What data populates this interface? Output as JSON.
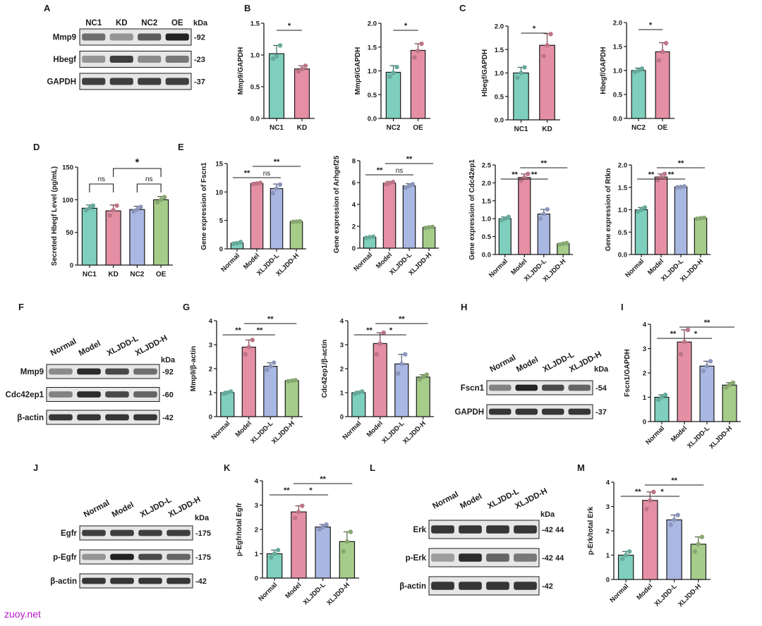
{
  "watermark": "zuoy.net",
  "colors": {
    "NC1": "#7ecfbd",
    "KD": "#e58fa4",
    "NC2": "#7ecfbd",
    "OE": "#e58fa4",
    "Normal": "#7ecfbd",
    "Model": "#e58fa4",
    "XLJDD-L": "#a9b7e3",
    "XLJDD-H": "#a6cc8a",
    "NC2_D": "#a9b7e3",
    "OE_D": "#a6cc8a"
  },
  "blots": [
    {
      "letter": "A",
      "lanes": [
        "NC1",
        "KD",
        "NC2",
        "OE"
      ],
      "unit": "kDa",
      "rows": [
        {
          "name": "Mmp9",
          "mw": "-92",
          "intensity": [
            0.55,
            0.35,
            0.65,
            0.95
          ]
        },
        {
          "name": "Hbegf",
          "mw": "-23",
          "intensity": [
            0.35,
            0.8,
            0.4,
            0.5
          ]
        },
        {
          "name": "GAPDH",
          "mw": "-37",
          "intensity": [
            0.8,
            0.8,
            0.8,
            0.8
          ]
        }
      ]
    },
    {
      "letter": "F",
      "lanes": [
        "Normal",
        "Model",
        "XLJDD-L",
        "XLJDD-H"
      ],
      "unit": "kDa",
      "rows": [
        {
          "name": "Mmp9",
          "mw": "-92",
          "intensity": [
            0.4,
            0.9,
            0.75,
            0.55
          ]
        },
        {
          "name": "Cdc42ep1",
          "mw": "-60",
          "intensity": [
            0.45,
            0.9,
            0.75,
            0.6
          ]
        },
        {
          "name": "β-actin",
          "mw": "-42",
          "intensity": [
            0.85,
            0.85,
            0.85,
            0.85
          ]
        }
      ]
    },
    {
      "letter": "H",
      "lanes": [
        "Normal",
        "Model",
        "XLJDD-L",
        "XLJDD-H"
      ],
      "unit": "kDa",
      "rows": [
        {
          "name": "Fscn1",
          "mw": "-54",
          "intensity": [
            0.45,
            0.95,
            0.75,
            0.6
          ]
        },
        {
          "name": "GAPDH",
          "mw": "-37",
          "intensity": [
            0.85,
            0.85,
            0.85,
            0.85
          ]
        }
      ]
    },
    {
      "letter": "J",
      "lanes": [
        "Normal",
        "Model",
        "XLJDD-L",
        "XLJDD-H"
      ],
      "unit": "kDa",
      "rows": [
        {
          "name": "Egfr",
          "mw": "-175",
          "intensity": [
            0.8,
            0.8,
            0.8,
            0.8
          ]
        },
        {
          "name": "p-Egfr",
          "mw": "-175",
          "intensity": [
            0.35,
            0.95,
            0.75,
            0.6
          ]
        },
        {
          "name": "β-actin",
          "mw": "-42",
          "intensity": [
            0.85,
            0.85,
            0.85,
            0.85
          ]
        }
      ]
    },
    {
      "letter": "L",
      "lanes": [
        "Normal",
        "Model",
        "XLJDD-L",
        "XLJDD-H"
      ],
      "unit": "kDa",
      "rows": [
        {
          "name": "Erk",
          "mw": "-42 44",
          "intensity": [
            0.85,
            0.85,
            0.85,
            0.85
          ]
        },
        {
          "name": "p-Erk",
          "mw": "-42 44",
          "intensity": [
            0.3,
            0.9,
            0.6,
            0.5
          ]
        },
        {
          "name": "β-actin",
          "mw": "-42",
          "intensity": [
            0.85,
            0.85,
            0.85,
            0.85
          ]
        }
      ]
    }
  ],
  "chart_data": [
    {
      "panel": "B",
      "type": "bar",
      "categories": [
        "NC1",
        "KD"
      ],
      "values": [
        1.02,
        0.78
      ],
      "errors": [
        0.13,
        0.05
      ],
      "points": [
        [
          0.94,
          0.98,
          1.15
        ],
        [
          0.74,
          0.78,
          0.83
        ]
      ],
      "ylabel": "Mmp9/GAPDH",
      "ylim": [
        0,
        1.5
      ],
      "yticks": [
        "0.0",
        "0.5",
        "1.0",
        "1.5"
      ],
      "sig": [
        {
          "a": 0,
          "b": 1,
          "label": "*"
        }
      ]
    },
    {
      "panel": "B2",
      "type": "bar",
      "categories": [
        "NC2",
        "OE"
      ],
      "values": [
        0.97,
        1.43
      ],
      "errors": [
        0.14,
        0.14
      ],
      "points": [
        [
          0.88,
          0.96,
          1.08
        ],
        [
          1.28,
          1.42,
          1.57
        ]
      ],
      "ylabel": "Mmp9/GAPDH",
      "ylim": [
        0,
        2.0
      ],
      "yticks": [
        "0.0",
        "0.5",
        "1.0",
        "1.5",
        "2.0"
      ],
      "sig": [
        {
          "a": 0,
          "b": 1,
          "label": "*"
        }
      ]
    },
    {
      "panel": "C",
      "type": "bar",
      "categories": [
        "NC1",
        "KD"
      ],
      "values": [
        1.0,
        1.59
      ],
      "errors": [
        0.12,
        0.25
      ],
      "points": [
        [
          0.9,
          1.0,
          1.12
        ],
        [
          1.36,
          1.59,
          1.83
        ]
      ],
      "ylabel": "Hbegf/GAPDH",
      "ylim": [
        0,
        2.0
      ],
      "yticks": [
        "0.0",
        "0.5",
        "1.0",
        "1.5",
        "2.0"
      ],
      "sig": [
        {
          "a": 0,
          "b": 1,
          "label": "*"
        }
      ]
    },
    {
      "panel": "C2",
      "type": "bar",
      "categories": [
        "NC2",
        "OE"
      ],
      "values": [
        1.0,
        1.39
      ],
      "errors": [
        0.05,
        0.19
      ],
      "points": [
        [
          0.97,
          1.0,
          1.04
        ],
        [
          1.21,
          1.39,
          1.57
        ]
      ],
      "ylabel": "Hbegf/GAPDH",
      "ylim": [
        0,
        2.0
      ],
      "yticks": [
        "0.0",
        "0.5",
        "1.0",
        "1.5",
        "2.0"
      ],
      "sig": [
        {
          "a": 0,
          "b": 1,
          "label": "*"
        }
      ]
    },
    {
      "panel": "D",
      "type": "bar",
      "categories": [
        "NC1",
        "KD",
        "NC2",
        "OE"
      ],
      "values": [
        87,
        83,
        85,
        100
      ],
      "errors": [
        5,
        9,
        5,
        5
      ],
      "points": [
        [
          84,
          87,
          91
        ],
        [
          76,
          84,
          91
        ],
        [
          82,
          85,
          89
        ],
        [
          96,
          100,
          104
        ]
      ],
      "ylabel": "Secreted Hbegf Level (pg/mL)",
      "ylim": [
        0,
        150
      ],
      "yticks": [
        "0",
        "50",
        "100",
        "150"
      ],
      "sig": [
        {
          "a": 0,
          "b": 1,
          "label": "ns"
        },
        {
          "a": 2,
          "b": 3,
          "label": "ns"
        },
        {
          "a": 1,
          "b": 3,
          "label": "*"
        }
      ]
    },
    {
      "panel": "E1",
      "type": "bar",
      "categories": [
        "Normal",
        "Model",
        "XLJDD-L",
        "XLJDD-H"
      ],
      "values": [
        1.0,
        11.5,
        10.6,
        4.8
      ],
      "errors": [
        0.2,
        0.2,
        0.8,
        0.1
      ],
      "points": [
        [
          0.9,
          1.0,
          1.2
        ],
        [
          11.4,
          11.5,
          11.6
        ],
        [
          9.8,
          10.6,
          11.3
        ],
        [
          4.75,
          4.8,
          4.85
        ]
      ],
      "ylabel": "Gene expression of Fscn1",
      "ylim": [
        0,
        15
      ],
      "yticks": [
        "0",
        "5",
        "10",
        "15"
      ],
      "rotate": true,
      "sig": [
        {
          "a": 0,
          "b": 1,
          "label": "**"
        },
        {
          "a": 1,
          "b": 2,
          "label": "ns"
        },
        {
          "a": 1,
          "b": 3,
          "label": "**"
        }
      ]
    },
    {
      "panel": "E2",
      "type": "bar",
      "categories": [
        "Normal",
        "Model",
        "XLJDD-L",
        "XLJDD-H"
      ],
      "values": [
        1.0,
        5.95,
        5.7,
        1.9
      ],
      "errors": [
        0.05,
        0.15,
        0.2,
        0.1
      ],
      "points": [
        [
          0.95,
          1.0,
          1.05
        ],
        [
          5.85,
          5.95,
          6.05
        ],
        [
          5.55,
          5.7,
          5.85
        ],
        [
          1.85,
          1.9,
          1.95
        ]
      ],
      "ylabel": "Gene expression of Arhgef25",
      "ylim": [
        0,
        8
      ],
      "yticks": [
        "0",
        "2",
        "4",
        "6",
        "8"
      ],
      "rotate": true,
      "sig": [
        {
          "a": 0,
          "b": 1,
          "label": "**"
        },
        {
          "a": 1,
          "b": 2,
          "label": "ns"
        },
        {
          "a": 1,
          "b": 3,
          "label": "**"
        }
      ]
    },
    {
      "panel": "E3",
      "type": "bar",
      "categories": [
        "Normal",
        "Model",
        "XLJDD-L",
        "XLJDD-H"
      ],
      "values": [
        1.0,
        2.15,
        1.13,
        0.3
      ],
      "errors": [
        0.05,
        0.1,
        0.13,
        0.02
      ],
      "points": [
        [
          0.96,
          1.0,
          1.05
        ],
        [
          2.06,
          2.15,
          2.25
        ],
        [
          1.0,
          1.13,
          1.26
        ],
        [
          0.28,
          0.3,
          0.32
        ]
      ],
      "ylabel": "Gene expression of Cdc42ep1",
      "ylim": [
        0,
        2.5
      ],
      "yticks": [
        "0.0",
        "0.5",
        "1.0",
        "1.5",
        "2.0",
        "2.5"
      ],
      "rotate": true,
      "sig": [
        {
          "a": 0,
          "b": 1,
          "label": "**"
        },
        {
          "a": 1,
          "b": 2,
          "label": "**"
        },
        {
          "a": 1,
          "b": 3,
          "label": "**"
        }
      ]
    },
    {
      "panel": "E4",
      "type": "bar",
      "categories": [
        "Normal",
        "Model",
        "XLJDD-L",
        "XLJDD-H"
      ],
      "values": [
        1.0,
        1.73,
        1.51,
        0.81
      ],
      "errors": [
        0.05,
        0.07,
        0.01,
        0.01
      ],
      "points": [
        [
          0.96,
          1.0,
          1.05
        ],
        [
          1.66,
          1.73,
          1.8
        ],
        [
          1.5,
          1.51,
          1.52
        ],
        [
          0.8,
          0.81,
          0.82
        ]
      ],
      "ylabel": "Gene expression of Rtkn",
      "ylim": [
        0,
        2.0
      ],
      "yticks": [
        "0.0",
        "0.5",
        "1.0",
        "1.5",
        "2.0"
      ],
      "rotate": true,
      "sig": [
        {
          "a": 0,
          "b": 1,
          "label": "**"
        },
        {
          "a": 1,
          "b": 2,
          "label": "**"
        },
        {
          "a": 1,
          "b": 3,
          "label": "**"
        }
      ]
    },
    {
      "panel": "G1",
      "type": "bar",
      "categories": [
        "Normal",
        "Model",
        "XLJDD-L",
        "XLJDD-H"
      ],
      "values": [
        1.0,
        2.9,
        2.1,
        1.5
      ],
      "errors": [
        0.05,
        0.3,
        0.15,
        0.02
      ],
      "points": [
        [
          0.95,
          1.0,
          1.05
        ],
        [
          2.6,
          2.9,
          3.2
        ],
        [
          1.95,
          2.1,
          2.25
        ],
        [
          1.48,
          1.5,
          1.52
        ]
      ],
      "ylabel": "Mmp9/β-actin",
      "ylim": [
        0,
        4
      ],
      "yticks": [
        "0",
        "1",
        "2",
        "3",
        "4"
      ],
      "rotate": true,
      "sig": [
        {
          "a": 0,
          "b": 1,
          "label": "**"
        },
        {
          "a": 1,
          "b": 2,
          "label": "**"
        },
        {
          "a": 1,
          "b": 3,
          "label": "**"
        }
      ]
    },
    {
      "panel": "G2",
      "type": "bar",
      "categories": [
        "Normal",
        "Model",
        "XLJDD-L",
        "XLJDD-H"
      ],
      "values": [
        1.0,
        3.05,
        2.2,
        1.65
      ],
      "errors": [
        0.05,
        0.45,
        0.4,
        0.1
      ],
      "points": [
        [
          0.95,
          1.0,
          1.05
        ],
        [
          2.6,
          3.05,
          3.5
        ],
        [
          1.8,
          2.2,
          2.6
        ],
        [
          1.55,
          1.65,
          1.75
        ]
      ],
      "ylabel": "Cdc42ep1/β-actin",
      "ylim": [
        0,
        4
      ],
      "yticks": [
        "0",
        "1",
        "2",
        "3",
        "4"
      ],
      "rotate": true,
      "sig": [
        {
          "a": 0,
          "b": 1,
          "label": "**"
        },
        {
          "a": 1,
          "b": 2,
          "label": "*"
        },
        {
          "a": 1,
          "b": 3,
          "label": "**"
        }
      ]
    },
    {
      "panel": "I",
      "type": "bar",
      "categories": [
        "Normal",
        "Model",
        "XLJDD-L",
        "XLJDD-H"
      ],
      "values": [
        1.0,
        3.27,
        2.28,
        1.5
      ],
      "errors": [
        0.1,
        0.5,
        0.2,
        0.1
      ],
      "points": [
        [
          0.9,
          1.0,
          1.1
        ],
        [
          2.77,
          3.27,
          3.77
        ],
        [
          2.08,
          2.28,
          2.48
        ],
        [
          1.4,
          1.5,
          1.6
        ]
      ],
      "ylabel": "Fscn1/GAPDH",
      "ylim": [
        0,
        4
      ],
      "yticks": [
        "0",
        "1",
        "2",
        "3",
        "4"
      ],
      "rotate": true,
      "sig": [
        {
          "a": 0,
          "b": 1,
          "label": "**"
        },
        {
          "a": 1,
          "b": 2,
          "label": "*"
        },
        {
          "a": 1,
          "b": 3,
          "label": "**"
        }
      ]
    },
    {
      "panel": "K",
      "type": "bar",
      "categories": [
        "Normal",
        "Model",
        "XLJDD-L",
        "XLJDD-H"
      ],
      "values": [
        1.0,
        2.72,
        2.1,
        1.5
      ],
      "errors": [
        0.15,
        0.25,
        0.1,
        0.4
      ],
      "points": [
        [
          0.85,
          1.0,
          1.15
        ],
        [
          2.47,
          2.72,
          2.97
        ],
        [
          2.0,
          2.1,
          2.2
        ],
        [
          1.1,
          1.5,
          1.9
        ]
      ],
      "ylabel": "p-Egfr/total Egfr",
      "ylim": [
        0,
        4
      ],
      "yticks": [
        "0",
        "1",
        "2",
        "3",
        "4"
      ],
      "rotate": true,
      "sig": [
        {
          "a": 0,
          "b": 1,
          "label": "**"
        },
        {
          "a": 1,
          "b": 2,
          "label": "*"
        },
        {
          "a": 1,
          "b": 3,
          "label": "**"
        }
      ]
    },
    {
      "panel": "M",
      "type": "bar",
      "categories": [
        "Normal",
        "Model",
        "XLJDD-L",
        "XLJDD-H"
      ],
      "values": [
        1.0,
        3.25,
        2.45,
        1.45
      ],
      "errors": [
        0.15,
        0.35,
        0.2,
        0.3
      ],
      "points": [
        [
          0.85,
          1.0,
          1.15
        ],
        [
          2.9,
          3.25,
          3.6
        ],
        [
          2.25,
          2.45,
          2.65
        ],
        [
          1.15,
          1.45,
          1.75
        ]
      ],
      "ylabel": "p-Erk/total Erk",
      "ylim": [
        0,
        4
      ],
      "yticks": [
        "0",
        "1",
        "2",
        "3",
        "4"
      ],
      "rotate": true,
      "sig": [
        {
          "a": 0,
          "b": 1,
          "label": "**"
        },
        {
          "a": 1,
          "b": 2,
          "label": "*"
        },
        {
          "a": 1,
          "b": 3,
          "label": "**"
        }
      ]
    }
  ],
  "letters": [
    "A",
    "B",
    "C",
    "D",
    "E",
    "F",
    "G",
    "H",
    "I",
    "J",
    "K",
    "L",
    "M"
  ]
}
